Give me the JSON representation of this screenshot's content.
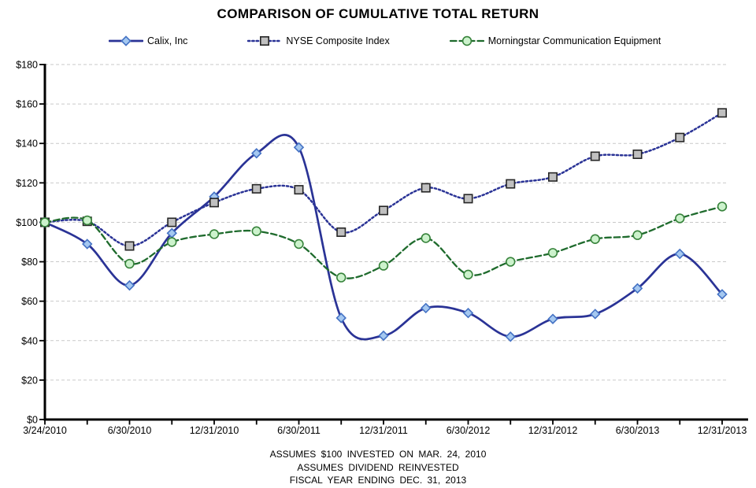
{
  "title": "COMPARISON OF CUMULATIVE TOTAL RETURN",
  "footnotes": [
    "ASSUMES  $100 INVESTED  ON MAR.  24, 2010",
    "ASSUMES  DIVIDEND  REINVESTED",
    "FISCAL YEAR  ENDING  DEC.  31, 2013"
  ],
  "chart_data": {
    "type": "line",
    "title": "COMPARISON OF CUMULATIVE TOTAL RETURN",
    "x": [
      "3/24/2010",
      "3/31/2010",
      "6/30/2010",
      "9/30/2010",
      "12/31/2010",
      "3/31/2011",
      "6/30/2011",
      "9/30/2011",
      "12/31/2011",
      "3/31/2012",
      "6/30/2012",
      "9/30/2012",
      "12/31/2012",
      "3/31/2013",
      "6/30/2013",
      "9/30/2013",
      "12/31/2013"
    ],
    "x_tick_labels": [
      "3/24/2010",
      "6/30/2010",
      "12/31/2010",
      "6/30/2011",
      "12/31/2011",
      "6/30/2012",
      "12/31/2012",
      "6/30/2013",
      "12/31/2013"
    ],
    "x_tick_label_indices": [
      0,
      2,
      4,
      6,
      8,
      10,
      12,
      14,
      16
    ],
    "ylim": [
      0,
      180
    ],
    "ytick_step": 20,
    "y_prefix": "$",
    "grid": true,
    "legend_position": "top",
    "gridline_color": "#C9C9C9",
    "axis_color": "#000000",
    "series": [
      {
        "name": "Calix, Inc",
        "line_style": "solid",
        "color": "#2A3396",
        "marker": "diamond",
        "marker_fill": "#A5C8F0",
        "marker_stroke": "#4472C4",
        "values": [
          100,
          89,
          68,
          94.5,
          113,
          135,
          138,
          51.5,
          42.5,
          56.5,
          54,
          42,
          51,
          53.5,
          66.5,
          84,
          63.5
        ]
      },
      {
        "name": "NYSE Composite Index",
        "line_style": "dotted",
        "color": "#2A3396",
        "marker": "square",
        "marker_fill": "#C0C0C0",
        "marker_stroke": "#262626",
        "values": [
          100,
          100.5,
          88,
          100,
          110,
          117,
          116.5,
          95,
          106,
          117.5,
          112,
          119.5,
          123,
          133.5,
          134.5,
          143,
          155.5
        ]
      },
      {
        "name": "Morningstar Communication Equipment",
        "line_style": "dashed",
        "color": "#1F6B2D",
        "marker": "circle",
        "marker_fill": "#CCF2CC",
        "marker_stroke": "#37833B",
        "values": [
          100,
          101,
          79,
          90,
          94,
          95.5,
          89,
          72,
          78,
          92,
          73.5,
          80,
          84.5,
          91.5,
          93.5,
          102,
          108
        ]
      }
    ]
  }
}
